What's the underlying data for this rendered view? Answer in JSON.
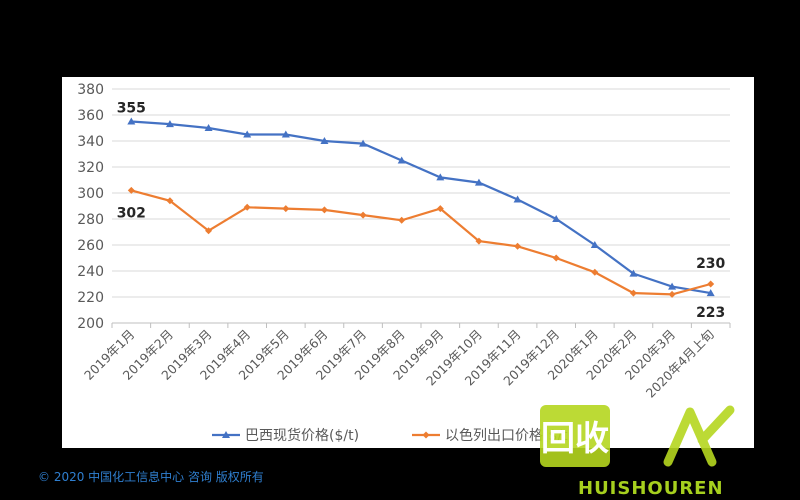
{
  "chart_data": {
    "type": "line",
    "categories": [
      "2019年1月",
      "2019年2月",
      "2019年3月",
      "2019年4月",
      "2019年5月",
      "2019年6月",
      "2019年7月",
      "2019年8月",
      "2019年9月",
      "2019年10月",
      "2019年11月",
      "2019年12月",
      "2020年1月",
      "2020年2月",
      "2020年3月",
      "2020年4月上旬"
    ],
    "series": [
      {
        "name": "巴西现货价格($/t)",
        "color": "#4472c4",
        "marker": "triangle",
        "values": [
          355,
          353,
          350,
          345,
          345,
          340,
          338,
          325,
          312,
          308,
          295,
          280,
          260,
          238,
          228,
          223
        ]
      },
      {
        "name": "以色列出口价格($/t)",
        "color": "#ed7d31",
        "marker": "diamond",
        "values": [
          302,
          294,
          271,
          289,
          288,
          287,
          283,
          279,
          288,
          263,
          259,
          250,
          239,
          223,
          222,
          230
        ]
      }
    ],
    "ylim": [
      200,
      380
    ],
    "yticks": [
      200,
      220,
      240,
      260,
      280,
      300,
      320,
      340,
      360,
      380
    ],
    "grid": true,
    "legend": "bottom",
    "annotations": [
      {
        "series": 0,
        "index": 0,
        "text": "355"
      },
      {
        "series": 1,
        "index": 0,
        "text": "302"
      },
      {
        "series": 1,
        "index": 15,
        "text": "230"
      },
      {
        "series": 0,
        "index": 15,
        "text": "223"
      }
    ]
  },
  "footer": {
    "copyright": "© 2020 中国化工信息中心 咨询 版权所有"
  },
  "watermark": {
    "logo_text": "回收",
    "url_text": "HUISHOUREN"
  }
}
